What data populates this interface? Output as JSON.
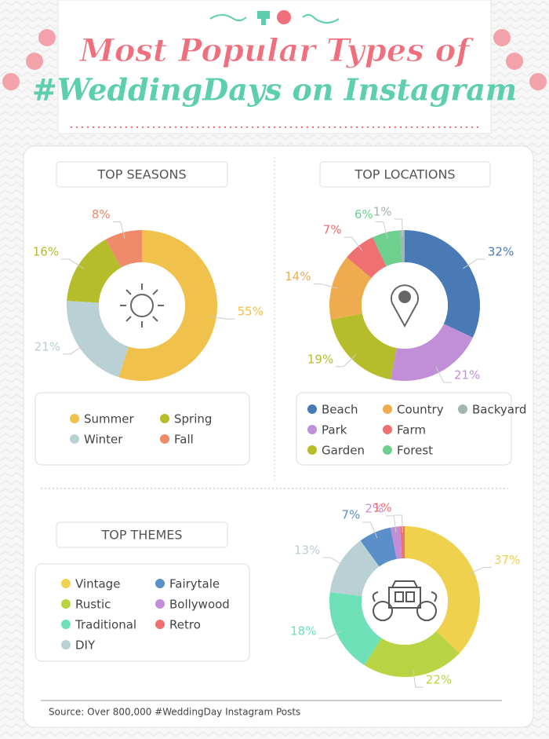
{
  "title_lines": [
    "Most Popular Types of",
    "#WeddingDays on Instagram"
  ],
  "source": "Source: Over 800,000 #WeddingDay Instagram Posts",
  "chart_data": [
    {
      "type": "donut",
      "title": "TOP SEASONS",
      "categories": [
        "Summer",
        "Winter",
        "Spring",
        "Fall"
      ],
      "values": [
        55,
        21,
        16,
        8
      ],
      "value_labels": [
        "55%",
        "21%",
        "16%",
        "8%"
      ],
      "colors": [
        "#f0c24b",
        "#b9d0d4",
        "#b5bd2a",
        "#ef8a6a"
      ]
    },
    {
      "type": "donut",
      "title": "TOP LOCATIONS",
      "categories": [
        "Beach",
        "Park",
        "Garden",
        "Country",
        "Farm",
        "Forest",
        "Backyard"
      ],
      "values": [
        32,
        21,
        19,
        14,
        7,
        6,
        1
      ],
      "value_labels": [
        "32%",
        "21%",
        "19%",
        "14%",
        "7%",
        "6%",
        "1%"
      ],
      "colors": [
        "#4a7ab5",
        "#c08fd8",
        "#b5bd2a",
        "#efac4f",
        "#ee7070",
        "#6dd08e",
        "#9fb7b0"
      ]
    },
    {
      "type": "donut",
      "title": "TOP THEMES",
      "categories": [
        "Vintage",
        "Rustic",
        "Traditional",
        "DIY",
        "Fairytale",
        "Bollywood",
        "Retro"
      ],
      "values": [
        37,
        22,
        18,
        13,
        7,
        2,
        1
      ],
      "value_labels": [
        "37%",
        "22%",
        "18%",
        "13%",
        "7%",
        "2%",
        "1%"
      ],
      "colors": [
        "#efd14e",
        "#b9d443",
        "#6ee0b8",
        "#b9d0d4",
        "#5b8fc9",
        "#c08fd8",
        "#ee7070"
      ]
    }
  ]
}
